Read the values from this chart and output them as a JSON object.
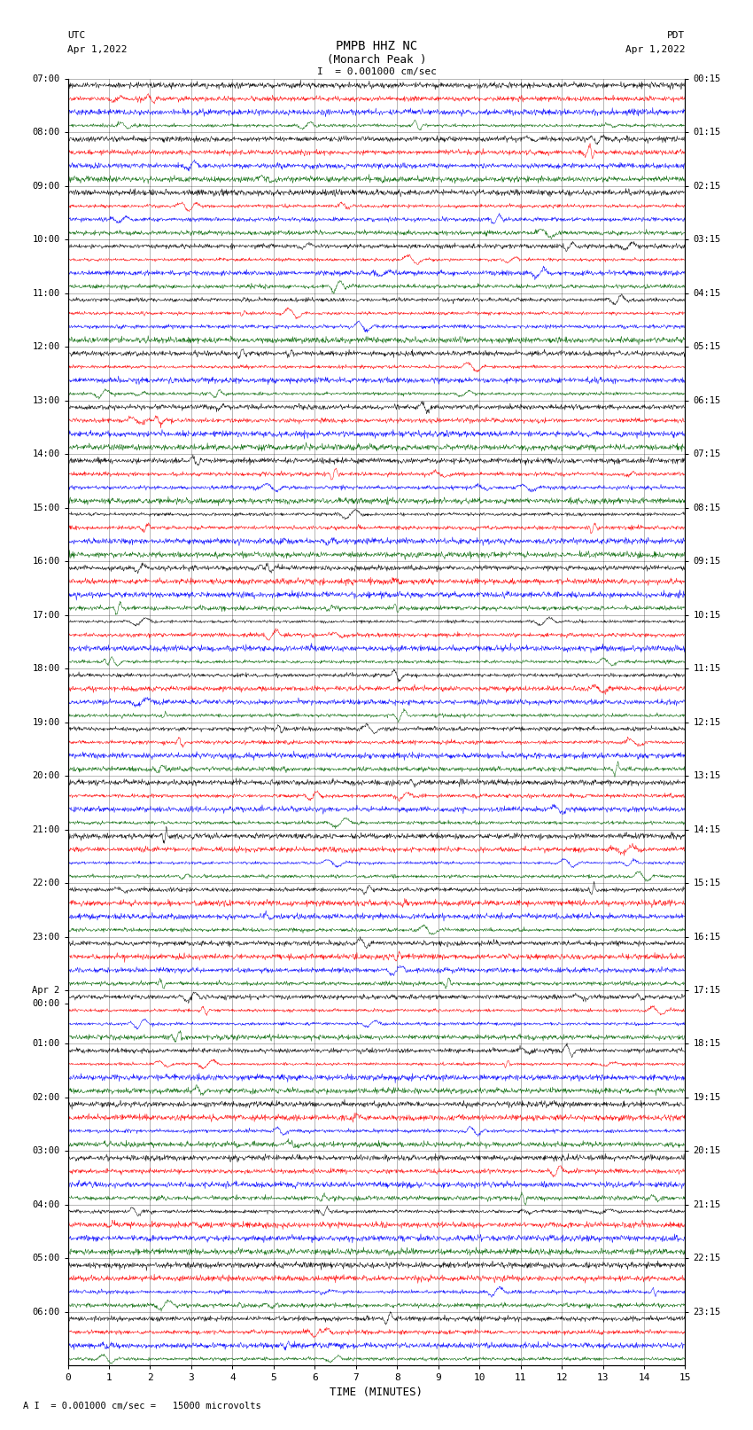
{
  "title_line1": "PMPB HHZ NC",
  "title_line2": "(Monarch Peak )",
  "scale_text": "I  = 0.001000 cm/sec",
  "footer_text": "A I  = 0.001000 cm/sec =   15000 microvolts",
  "utc_label": "UTC",
  "utc_date": "Apr 1,2022",
  "pdt_label": "PDT",
  "pdt_date": "Apr 1,2022",
  "xlabel": "TIME (MINUTES)",
  "xmin": 0,
  "xmax": 15,
  "xticks": [
    0,
    1,
    2,
    3,
    4,
    5,
    6,
    7,
    8,
    9,
    10,
    11,
    12,
    13,
    14,
    15
  ],
  "colors": [
    "black",
    "red",
    "blue",
    "#006400"
  ],
  "background_color": "white",
  "plot_bg_color": "white",
  "left_times_utc": [
    "07:00",
    "",
    "",
    "",
    "08:00",
    "",
    "",
    "",
    "09:00",
    "",
    "",
    "",
    "10:00",
    "",
    "",
    "",
    "11:00",
    "",
    "",
    "",
    "12:00",
    "",
    "",
    "",
    "13:00",
    "",
    "",
    "",
    "14:00",
    "",
    "",
    "",
    "15:00",
    "",
    "",
    "",
    "16:00",
    "",
    "",
    "",
    "17:00",
    "",
    "",
    "",
    "18:00",
    "",
    "",
    "",
    "19:00",
    "",
    "",
    "",
    "20:00",
    "",
    "",
    "",
    "21:00",
    "",
    "",
    "",
    "22:00",
    "",
    "",
    "",
    "23:00",
    "",
    "",
    "",
    "Apr 2",
    "00:00",
    "",
    "",
    "01:00",
    "",
    "",
    "",
    "02:00",
    "",
    "",
    "",
    "03:00",
    "",
    "",
    "",
    "04:00",
    "",
    "",
    "",
    "05:00",
    "",
    "",
    "",
    "06:00",
    "",
    "",
    ""
  ],
  "right_times_pdt": [
    "00:15",
    "",
    "",
    "",
    "01:15",
    "",
    "",
    "",
    "02:15",
    "",
    "",
    "",
    "03:15",
    "",
    "",
    "",
    "04:15",
    "",
    "",
    "",
    "05:15",
    "",
    "",
    "",
    "06:15",
    "",
    "",
    "",
    "07:15",
    "",
    "",
    "",
    "08:15",
    "",
    "",
    "",
    "09:15",
    "",
    "",
    "",
    "10:15",
    "",
    "",
    "",
    "11:15",
    "",
    "",
    "",
    "12:15",
    "",
    "",
    "",
    "13:15",
    "",
    "",
    "",
    "14:15",
    "",
    "",
    "",
    "15:15",
    "",
    "",
    "",
    "16:15",
    "",
    "",
    "",
    "17:15",
    "",
    "",
    "",
    "18:15",
    "",
    "",
    "",
    "19:15",
    "",
    "",
    "",
    "20:15",
    "",
    "",
    "",
    "21:15",
    "",
    "",
    "",
    "22:15",
    "",
    "",
    "",
    "23:15",
    "",
    "",
    ""
  ],
  "num_rows": 96,
  "num_hours": 24,
  "traces_per_hour": 4,
  "figsize": [
    8.5,
    16.13
  ],
  "dpi": 100
}
